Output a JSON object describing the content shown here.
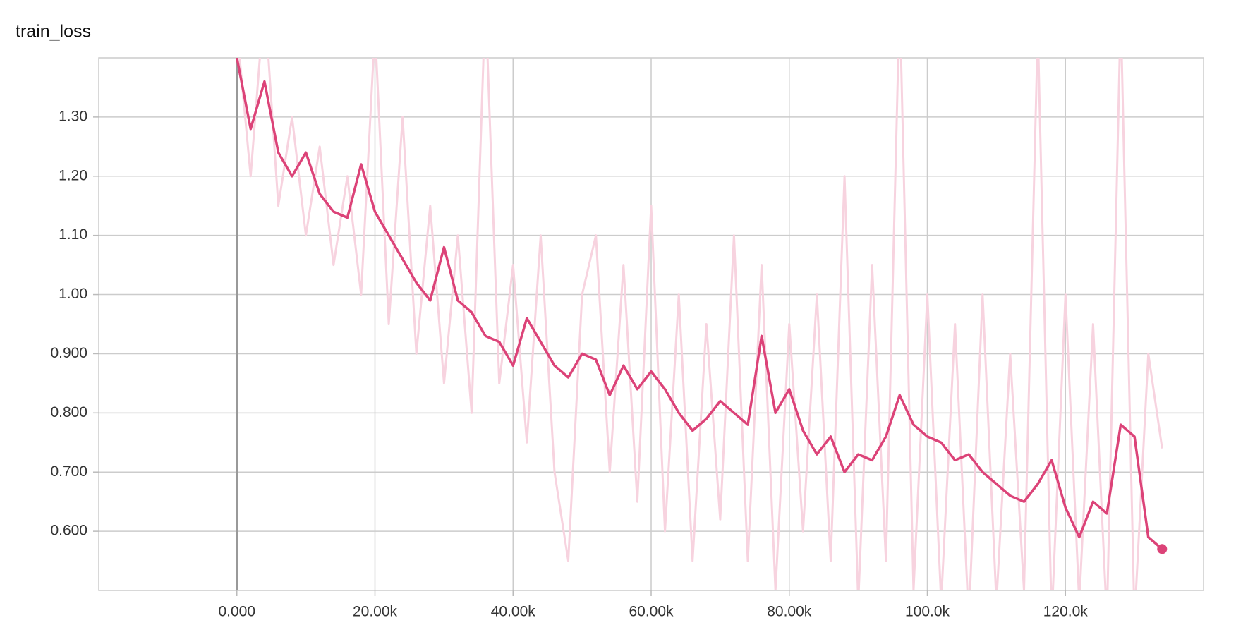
{
  "chart_data": {
    "type": "line",
    "title": "train_loss",
    "x": [
      0,
      2000,
      4000,
      6000,
      8000,
      10000,
      12000,
      14000,
      16000,
      18000,
      20000,
      22000,
      24000,
      26000,
      28000,
      30000,
      32000,
      34000,
      36000,
      38000,
      40000,
      42000,
      44000,
      46000,
      48000,
      50000,
      52000,
      54000,
      56000,
      58000,
      60000,
      62000,
      64000,
      66000,
      68000,
      70000,
      72000,
      74000,
      76000,
      78000,
      80000,
      82000,
      84000,
      86000,
      88000,
      90000,
      92000,
      94000,
      96000,
      98000,
      100000,
      102000,
      104000,
      106000,
      108000,
      110000,
      112000,
      114000,
      116000,
      118000,
      120000,
      122000,
      124000,
      126000,
      128000,
      130000,
      132000,
      134000
    ],
    "series": [
      {
        "color": "#f7d3df",
        "values": [
          1.45,
          1.2,
          1.5,
          1.15,
          1.3,
          1.1,
          1.25,
          1.05,
          1.2,
          1.0,
          1.45,
          0.95,
          1.3,
          0.9,
          1.15,
          0.85,
          1.1,
          0.8,
          1.5,
          0.85,
          1.05,
          0.75,
          1.1,
          0.7,
          0.55,
          1.0,
          1.1,
          0.7,
          1.05,
          0.65,
          1.15,
          0.6,
          1.0,
          0.55,
          0.95,
          0.62,
          1.1,
          0.55,
          1.05,
          0.5,
          0.95,
          0.6,
          1.0,
          0.55,
          1.2,
          0.48,
          1.05,
          0.55,
          1.5,
          0.5,
          1.0,
          0.48,
          0.95,
          0.45,
          1.0,
          0.48,
          0.9,
          0.5,
          1.45,
          0.45,
          1.0,
          0.48,
          0.95,
          0.45,
          1.48,
          0.45,
          0.9,
          0.74
        ]
      },
      {
        "color": "#dc4378",
        "values": [
          1.4,
          1.28,
          1.36,
          1.24,
          1.2,
          1.24,
          1.17,
          1.14,
          1.13,
          1.22,
          1.14,
          1.1,
          1.06,
          1.02,
          0.99,
          1.08,
          0.99,
          0.97,
          0.93,
          0.92,
          0.88,
          0.96,
          0.92,
          0.88,
          0.86,
          0.9,
          0.89,
          0.83,
          0.88,
          0.84,
          0.87,
          0.84,
          0.8,
          0.77,
          0.79,
          0.82,
          0.8,
          0.78,
          0.93,
          0.8,
          0.84,
          0.77,
          0.73,
          0.76,
          0.7,
          0.73,
          0.72,
          0.76,
          0.83,
          0.78,
          0.76,
          0.75,
          0.72,
          0.73,
          0.7,
          0.68,
          0.66,
          0.65,
          0.68,
          0.72,
          0.64,
          0.59,
          0.65,
          0.63,
          0.78,
          0.76,
          0.59,
          0.57
        ]
      }
    ],
    "xlim": [
      -20000,
      140000
    ],
    "xticks": [
      {
        "value": 0,
        "label": "0.000"
      },
      {
        "value": 20000,
        "label": "20.00k"
      },
      {
        "value": 40000,
        "label": "40.00k"
      },
      {
        "value": 60000,
        "label": "60.00k"
      },
      {
        "value": 80000,
        "label": "80.00k"
      },
      {
        "value": 100000,
        "label": "100.0k"
      },
      {
        "value": 120000,
        "label": "120.0k"
      }
    ],
    "ylim": [
      0.5,
      1.4
    ],
    "yticks": [
      {
        "value": 0.6,
        "label": "0.600"
      },
      {
        "value": 0.7,
        "label": "0.700"
      },
      {
        "value": 0.8,
        "label": "0.800"
      },
      {
        "value": 0.9,
        "label": "0.900"
      },
      {
        "value": 1.0,
        "label": "1.00"
      },
      {
        "value": 1.1,
        "label": "1.10"
      },
      {
        "value": 1.2,
        "label": "1.20"
      },
      {
        "value": 1.3,
        "label": "1.30"
      }
    ],
    "grid": true
  }
}
